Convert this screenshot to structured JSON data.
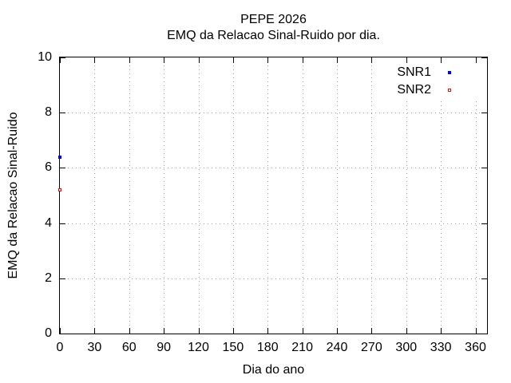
{
  "chart_data": {
    "type": "scatter",
    "title": "PEPE 2026",
    "subtitle": "EMQ da Relacao Sinal-Ruido por dia.",
    "xlabel": "Dia do ano",
    "ylabel": "EMQ da Relacao Sinal-Ruido",
    "xlim": [
      0,
      370
    ],
    "ylim": [
      0,
      10
    ],
    "x_ticks": [
      0,
      30,
      60,
      90,
      120,
      150,
      180,
      210,
      240,
      270,
      300,
      330,
      360
    ],
    "y_ticks": [
      0,
      2,
      4,
      6,
      8,
      10
    ],
    "grid": true,
    "grid_style": "dotted",
    "legend_position": "top-right-inside",
    "series": [
      {
        "name": "SNR1",
        "color": "#0000ff",
        "marker": "filled-square",
        "points": [
          {
            "x": 0,
            "y": 6.4
          }
        ]
      },
      {
        "name": "SNR2",
        "color": "#ff0000",
        "marker": "open-square",
        "points": [
          {
            "x": 0,
            "y": 5.2
          }
        ]
      }
    ]
  },
  "colors": {
    "background": "#ffffff",
    "border": "#000000",
    "grid": "#9c9c9c",
    "snr1": "#0000ff",
    "snr2": "#ff0000"
  }
}
